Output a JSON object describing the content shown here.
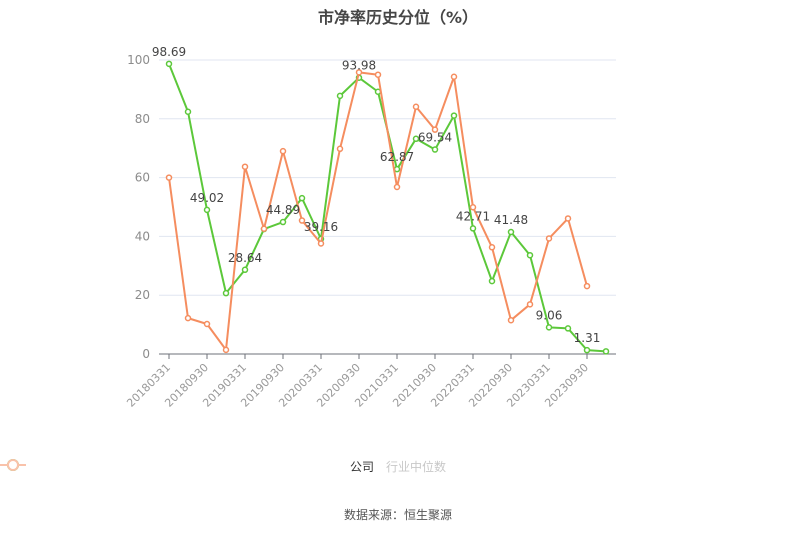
{
  "chart_data": {
    "type": "line",
    "title": "市净率历史分位（%）",
    "xlabel": "",
    "ylabel": "",
    "ylim": [
      0,
      100
    ],
    "yticks": [
      0,
      20,
      40,
      60,
      80,
      100
    ],
    "grid": true,
    "legend_position": "bottom",
    "x": [
      "20180331",
      "20180630",
      "20180930",
      "20181231",
      "20190331",
      "20190630",
      "20190930",
      "20191231",
      "20200331",
      "20200630",
      "20200930",
      "20201231",
      "20210331",
      "20210630",
      "20210930",
      "20211231",
      "20220331",
      "20220630",
      "20220930",
      "20221231",
      "20230331",
      "20230630",
      "20230930",
      "20231231"
    ],
    "xtick_labels": [
      "20180331",
      "20180930",
      "20190331",
      "20190930",
      "20200331",
      "20200930",
      "20210331",
      "20210930",
      "20220331",
      "20220930",
      "20230331",
      "20230930"
    ],
    "series": [
      {
        "name": "公司",
        "color": "#5cc83a",
        "values": [
          98.69,
          82.4,
          49.02,
          20.7,
          28.64,
          42.5,
          44.89,
          53.0,
          39.16,
          87.8,
          93.98,
          89.2,
          62.87,
          73.2,
          69.54,
          81.1,
          42.71,
          24.8,
          41.48,
          33.6,
          9.06,
          8.7,
          1.31,
          0.9
        ],
        "labeled_indices": [
          0,
          2,
          4,
          6,
          8,
          10,
          12,
          14,
          16,
          18,
          20,
          22
        ]
      },
      {
        "name": "行业中位数",
        "color": "#f58d5f",
        "values": [
          60.0,
          12.2,
          10.2,
          1.4,
          63.7,
          42.6,
          69.0,
          45.4,
          37.6,
          69.8,
          95.8,
          95.0,
          56.8,
          84.1,
          76.3,
          94.3,
          49.9,
          36.3,
          11.5,
          16.9,
          39.3,
          46.1,
          23.1,
          null
        ]
      }
    ]
  },
  "legend": {
    "items": [
      {
        "label": "公司",
        "color": "#5cc83a",
        "active": true
      },
      {
        "label": "行业中位数",
        "color": "#f9c2aa",
        "active": false
      }
    ]
  },
  "source": "数据来源：恒生聚源"
}
